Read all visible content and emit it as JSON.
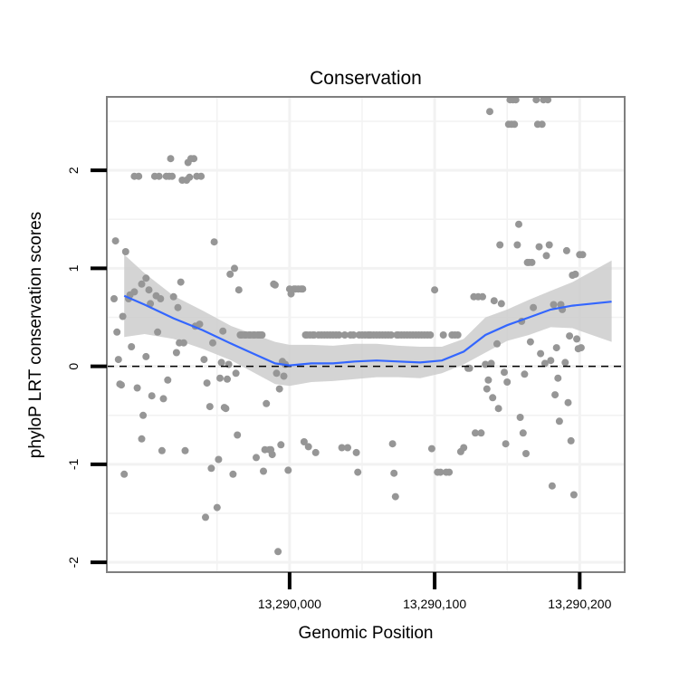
{
  "chart_data": {
    "type": "scatter",
    "title": "Conservation",
    "xlabel": "Genomic Position",
    "ylabel": "phyloP LRT conservation scores",
    "xlim": [
      13289874,
      13290231
    ],
    "ylim": [
      -2.1,
      2.75
    ],
    "x_ticks": [
      13290000,
      13290100,
      13290200
    ],
    "x_tick_labels": [
      "13,290,000",
      "13,290,100",
      "13,290,200"
    ],
    "y_ticks": [
      -2,
      -1,
      0,
      1,
      2
    ],
    "y_tick_labels": [
      "-2",
      "-1",
      "0",
      "1",
      "2"
    ],
    "grid": true,
    "reference_line": {
      "y": 0,
      "style": "dashed"
    },
    "colors": {
      "points": "#969696",
      "smooth": "#3366ff",
      "ribbon": "#cccccc",
      "frame": "#7f7f7f",
      "grid": "#f2f2f2"
    },
    "points": [
      [
        13289879,
        0.69
      ],
      [
        13289880,
        1.28
      ],
      [
        13289881,
        0.35
      ],
      [
        13289882,
        0.07
      ],
      [
        13289883,
        -0.18
      ],
      [
        13289884,
        -0.19
      ],
      [
        13289885,
        0.51
      ],
      [
        13289886,
        -1.1
      ],
      [
        13289887,
        1.17
      ],
      [
        13289889,
        0.69
      ],
      [
        13289890,
        0.73
      ],
      [
        13289891,
        0.2
      ],
      [
        13289893,
        0.76
      ],
      [
        13289893,
        1.94
      ],
      [
        13289895,
        -0.22
      ],
      [
        13289896,
        1.94
      ],
      [
        13289898,
        0.84
      ],
      [
        13289898,
        -0.74
      ],
      [
        13289899,
        -0.5
      ],
      [
        13289901,
        0.9
      ],
      [
        13289901,
        0.1
      ],
      [
        13289903,
        0.78
      ],
      [
        13289904,
        0.64
      ],
      [
        13289905,
        -0.3
      ],
      [
        13289907,
        1.94
      ],
      [
        13289908,
        0.72
      ],
      [
        13289909,
        0.35
      ],
      [
        13289910,
        1.94
      ],
      [
        13289911,
        0.69
      ],
      [
        13289912,
        -0.86
      ],
      [
        13289913,
        -0.33
      ],
      [
        13289915,
        1.94
      ],
      [
        13289916,
        -0.14
      ],
      [
        13289917,
        1.94
      ],
      [
        13289918,
        2.12
      ],
      [
        13289919,
        1.94
      ],
      [
        13289920,
        0.71
      ],
      [
        13289922,
        0.14
      ],
      [
        13289923,
        0.6
      ],
      [
        13289924,
        0.24
      ],
      [
        13289925,
        0.86
      ],
      [
        13289926,
        1.9
      ],
      [
        13289927,
        0.24
      ],
      [
        13289928,
        -0.86
      ],
      [
        13289929,
        1.9
      ],
      [
        13289930,
        2.08
      ],
      [
        13289931,
        1.93
      ],
      [
        13289932,
        2.12
      ],
      [
        13289934,
        2.12
      ],
      [
        13289935,
        0.41
      ],
      [
        13289936,
        1.94
      ],
      [
        13289938,
        0.43
      ],
      [
        13289939,
        1.94
      ],
      [
        13289941,
        0.07
      ],
      [
        13289942,
        -1.54
      ],
      [
        13289943,
        -0.17
      ],
      [
        13289945,
        -0.41
      ],
      [
        13289946,
        -1.04
      ],
      [
        13289947,
        0.24
      ],
      [
        13289948,
        1.27
      ],
      [
        13289950,
        -1.44
      ],
      [
        13289951,
        -0.95
      ],
      [
        13289952,
        -0.12
      ],
      [
        13289953,
        0.04
      ],
      [
        13289954,
        0.36
      ],
      [
        13289955,
        -0.42
      ],
      [
        13289956,
        -0.43
      ],
      [
        13289957,
        -0.13
      ],
      [
        13289958,
        0.02
      ],
      [
        13289959,
        0.94
      ],
      [
        13289961,
        -1.1
      ],
      [
        13289962,
        1.0
      ],
      [
        13289963,
        -0.07
      ],
      [
        13289964,
        -0.7
      ],
      [
        13289965,
        0.78
      ],
      [
        13289966,
        0.32
      ],
      [
        13289967,
        0.32
      ],
      [
        13289969,
        0.32
      ],
      [
        13289970,
        0.32
      ],
      [
        13289972,
        0.32
      ],
      [
        13289973,
        0.32
      ],
      [
        13289975,
        0.32
      ],
      [
        13289976,
        0.32
      ],
      [
        13289977,
        -0.93
      ],
      [
        13289978,
        0.32
      ],
      [
        13289979,
        0.32
      ],
      [
        13289980,
        0.32
      ],
      [
        13289981,
        0.32
      ],
      [
        13289982,
        -1.07
      ],
      [
        13289983,
        -0.85
      ],
      [
        13289984,
        -0.38
      ],
      [
        13289986,
        -0.85
      ],
      [
        13289987,
        -0.85
      ],
      [
        13289988,
        -0.9
      ],
      [
        13289989,
        0.84
      ],
      [
        13289990,
        0.83
      ],
      [
        13289991,
        -0.07
      ],
      [
        13289992,
        -1.89
      ],
      [
        13289993,
        -0.23
      ],
      [
        13289994,
        -0.8
      ],
      [
        13289995,
        0.05
      ],
      [
        13289996,
        -0.1
      ],
      [
        13289997,
        0.02
      ],
      [
        13289999,
        -1.06
      ],
      [
        13290000,
        0.79
      ],
      [
        13290001,
        0.74
      ],
      [
        13290003,
        0.79
      ],
      [
        13290004,
        0.79
      ],
      [
        13290006,
        0.79
      ],
      [
        13290008,
        0.79
      ],
      [
        13290009,
        0.79
      ],
      [
        13290010,
        -0.77
      ],
      [
        13290011,
        0.32
      ],
      [
        13290012,
        0.32
      ],
      [
        13290013,
        -0.82
      ],
      [
        13290014,
        0.32
      ],
      [
        13290016,
        0.32
      ],
      [
        13290017,
        0.32
      ],
      [
        13290018,
        -0.88
      ],
      [
        13290020,
        0.32
      ],
      [
        13290022,
        0.32
      ],
      [
        13290024,
        0.32
      ],
      [
        13290026,
        0.32
      ],
      [
        13290028,
        0.32
      ],
      [
        13290030,
        0.32
      ],
      [
        13290032,
        0.32
      ],
      [
        13290034,
        0.32
      ],
      [
        13290036,
        -0.83
      ],
      [
        13290038,
        0.32
      ],
      [
        13290040,
        -0.83
      ],
      [
        13290042,
        0.32
      ],
      [
        13290044,
        0.32
      ],
      [
        13290046,
        -0.88
      ],
      [
        13290047,
        -1.08
      ],
      [
        13290048,
        0.32
      ],
      [
        13290050,
        0.32
      ],
      [
        13290052,
        0.32
      ],
      [
        13290054,
        0.32
      ],
      [
        13290055,
        0.32
      ],
      [
        13290056,
        0.32
      ],
      [
        13290058,
        0.32
      ],
      [
        13290060,
        0.32
      ],
      [
        13290062,
        0.32
      ],
      [
        13290064,
        0.32
      ],
      [
        13290066,
        0.32
      ],
      [
        13290068,
        0.32
      ],
      [
        13290070,
        0.32
      ],
      [
        13290071,
        -0.79
      ],
      [
        13290072,
        -1.09
      ],
      [
        13290073,
        -1.33
      ],
      [
        13290074,
        0.32
      ],
      [
        13290075,
        0.32
      ],
      [
        13290077,
        0.32
      ],
      [
        13290079,
        0.32
      ],
      [
        13290081,
        0.32
      ],
      [
        13290083,
        0.32
      ],
      [
        13290085,
        0.32
      ],
      [
        13290087,
        0.32
      ],
      [
        13290089,
        0.32
      ],
      [
        13290091,
        0.32
      ],
      [
        13290093,
        0.32
      ],
      [
        13290095,
        0.32
      ],
      [
        13290097,
        0.32
      ],
      [
        13290098,
        -0.84
      ],
      [
        13290100,
        0.78
      ],
      [
        13290102,
        -1.08
      ],
      [
        13290104,
        -1.08
      ],
      [
        13290106,
        0.32
      ],
      [
        13290108,
        -1.08
      ],
      [
        13290110,
        -1.08
      ],
      [
        13290112,
        0.32
      ],
      [
        13290114,
        0.32
      ],
      [
        13290116,
        0.32
      ],
      [
        13290118,
        -0.87
      ],
      [
        13290120,
        -0.83
      ],
      [
        13290123,
        -0.02
      ],
      [
        13290124,
        -0.02
      ],
      [
        13290127,
        0.71
      ],
      [
        13290128,
        -0.68
      ],
      [
        13290130,
        0.71
      ],
      [
        13290132,
        -0.68
      ],
      [
        13290133,
        0.71
      ],
      [
        13290135,
        0.02
      ],
      [
        13290136,
        -0.23
      ],
      [
        13290137,
        -0.14
      ],
      [
        13290138,
        2.6
      ],
      [
        13290139,
        0.03
      ],
      [
        13290140,
        -0.32
      ],
      [
        13290141,
        0.67
      ],
      [
        13290143,
        0.23
      ],
      [
        13290144,
        -0.43
      ],
      [
        13290145,
        1.24
      ],
      [
        13290146,
        0.64
      ],
      [
        13290148,
        -0.06
      ],
      [
        13290149,
        -0.79
      ],
      [
        13290150,
        -0.16
      ],
      [
        13290151,
        2.47
      ],
      [
        13290152,
        2.72
      ],
      [
        13290153,
        2.47
      ],
      [
        13290154,
        2.72
      ],
      [
        13290155,
        2.47
      ],
      [
        13290156,
        2.72
      ],
      [
        13290157,
        1.24
      ],
      [
        13290158,
        1.45
      ],
      [
        13290159,
        -0.52
      ],
      [
        13290160,
        0.46
      ],
      [
        13290161,
        -0.68
      ],
      [
        13290162,
        -0.08
      ],
      [
        13290163,
        -0.89
      ],
      [
        13290164,
        1.06
      ],
      [
        13290165,
        1.06
      ],
      [
        13290166,
        0.25
      ],
      [
        13290167,
        1.06
      ],
      [
        13290168,
        0.6
      ],
      [
        13290170,
        2.72
      ],
      [
        13290171,
        2.47
      ],
      [
        13290172,
        1.22
      ],
      [
        13290173,
        0.13
      ],
      [
        13290174,
        2.47
      ],
      [
        13290175,
        2.72
      ],
      [
        13290176,
        0.03
      ],
      [
        13290177,
        1.13
      ],
      [
        13290178,
        2.72
      ],
      [
        13290179,
        1.24
      ],
      [
        13290180,
        0.06
      ],
      [
        13290181,
        -1.22
      ],
      [
        13290182,
        0.63
      ],
      [
        13290183,
        -0.29
      ],
      [
        13290184,
        0.19
      ],
      [
        13290185,
        -0.12
      ],
      [
        13290186,
        -0.56
      ],
      [
        13290187,
        0.63
      ],
      [
        13290188,
        0.58
      ],
      [
        13290190,
        0.04
      ],
      [
        13290191,
        1.18
      ],
      [
        13290192,
        -0.37
      ],
      [
        13290193,
        0.31
      ],
      [
        13290194,
        -0.76
      ],
      [
        13290195,
        0.93
      ],
      [
        13290196,
        -1.31
      ],
      [
        13290197,
        0.94
      ],
      [
        13290198,
        0.28
      ],
      [
        13290199,
        0.18
      ],
      [
        13290200,
        1.14
      ],
      [
        13290201,
        0.19
      ],
      [
        13290202,
        1.14
      ]
    ],
    "smooth": {
      "x": [
        13289886,
        13289900,
        13289920,
        13289940,
        13289960,
        13289975,
        13289990,
        13290000,
        13290015,
        13290030,
        13290045,
        13290060,
        13290075,
        13290090,
        13290105,
        13290120,
        13290135,
        13290150,
        13290165,
        13290180,
        13290195,
        13290222
      ],
      "y": [
        0.72,
        0.63,
        0.49,
        0.37,
        0.23,
        0.13,
        0.03,
        0.01,
        0.03,
        0.03,
        0.05,
        0.06,
        0.05,
        0.04,
        0.06,
        0.15,
        0.32,
        0.42,
        0.5,
        0.58,
        0.62,
        0.66
      ],
      "ribbon_low": [
        0.3,
        0.33,
        0.28,
        0.18,
        0.06,
        -0.06,
        -0.18,
        -0.2,
        -0.16,
        -0.15,
        -0.13,
        -0.11,
        -0.11,
        -0.12,
        -0.07,
        0.02,
        0.14,
        0.26,
        0.32,
        0.4,
        0.39,
        0.25
      ],
      "ribbon_high": [
        1.14,
        0.95,
        0.72,
        0.57,
        0.41,
        0.33,
        0.25,
        0.22,
        0.22,
        0.21,
        0.23,
        0.23,
        0.21,
        0.2,
        0.2,
        0.28,
        0.5,
        0.58,
        0.68,
        0.77,
        0.86,
        1.08
      ]
    }
  }
}
